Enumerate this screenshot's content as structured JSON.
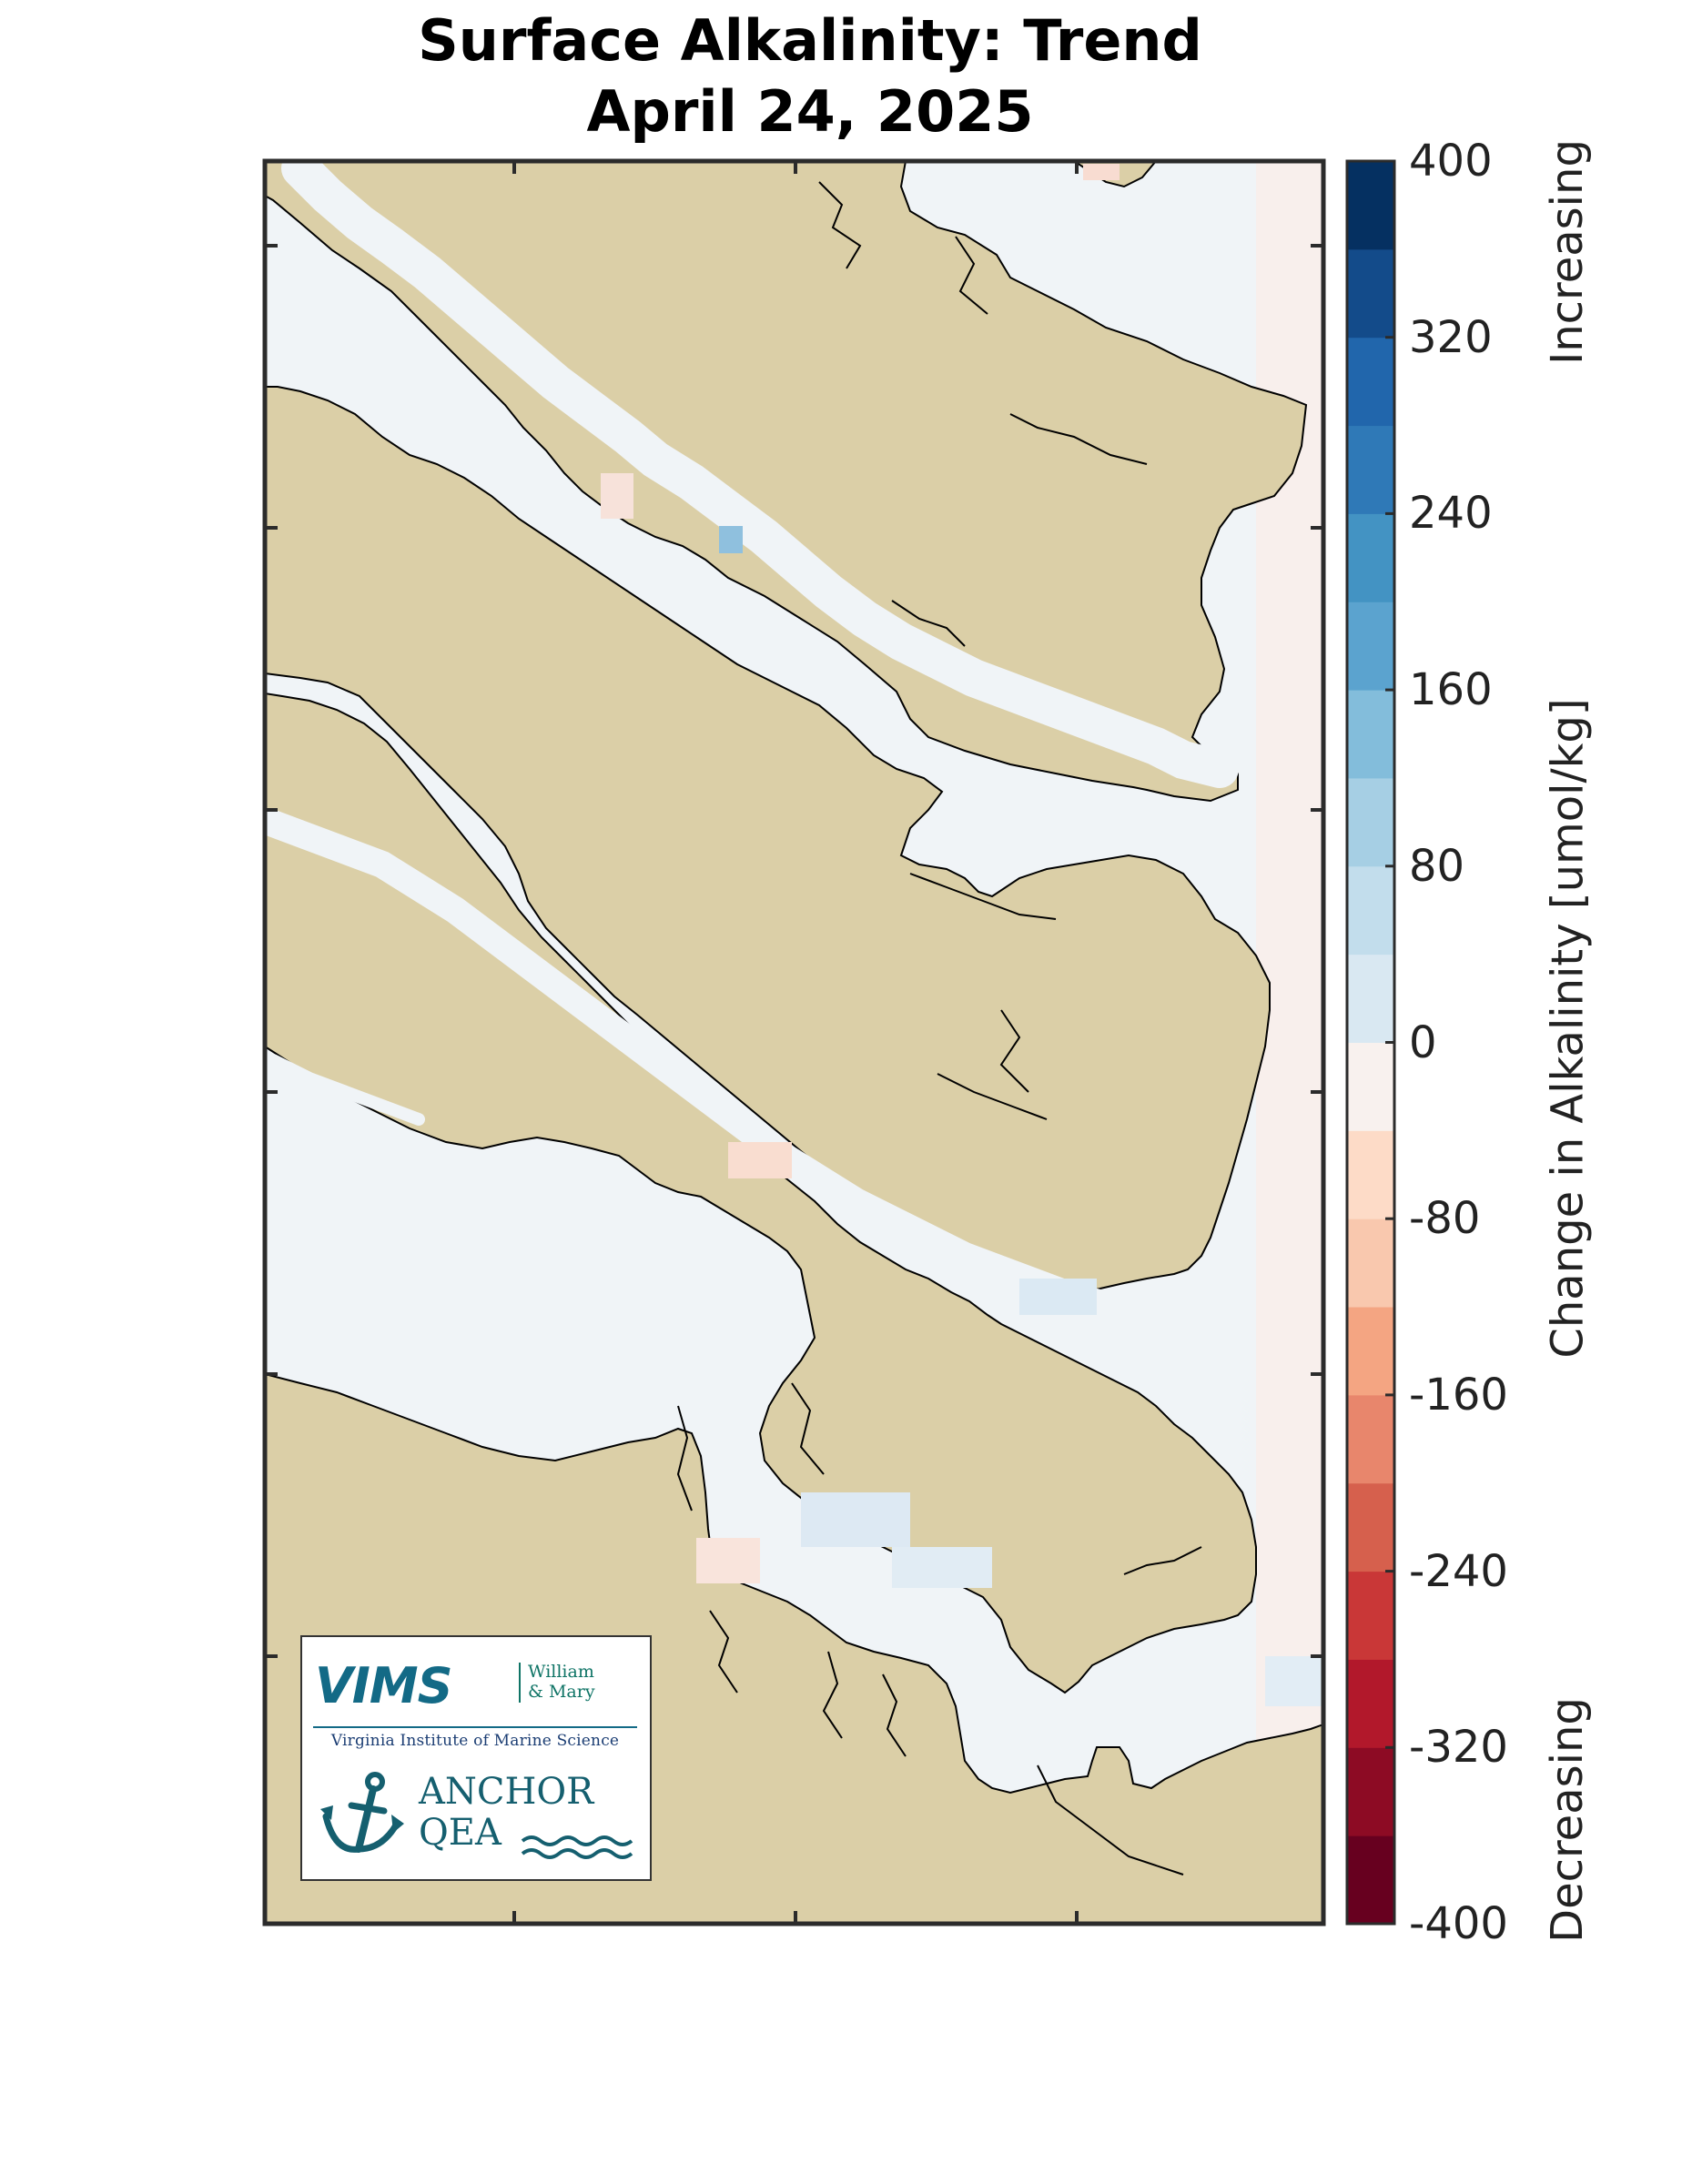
{
  "title": {
    "line1": "Surface Alkalinity: Trend",
    "line2": "April 24, 2025"
  },
  "colorbar": {
    "label": "Change in Alkalinity [umol/kg]",
    "top_label": "Increasing",
    "bottom_label": "Decreasing",
    "min": -400,
    "max": 400,
    "step": 40,
    "tick_labels": [
      "400",
      "320",
      "240",
      "160",
      "80",
      "0",
      "-80",
      "-160",
      "-240",
      "-320",
      "-400"
    ],
    "colors_bottom_to_top": [
      "#67001f",
      "#8d0b24",
      "#b2182b",
      "#c93737",
      "#d6604d",
      "#e8866c",
      "#f4a582",
      "#f9c8ae",
      "#fddbc7",
      "#f8f1ee",
      "#eef3f6",
      "#d9e8f2",
      "#c2ddec",
      "#a6cfe4",
      "#83bddb",
      "#5ba3cf",
      "#4393c3",
      "#2f79b7",
      "#2166ac",
      "#134b8a",
      "#053061"
    ]
  },
  "map": {
    "land_color": "#dbcfa7",
    "water_color": "#f0f4f7",
    "coast_color": "#000000",
    "frame_color": "#2b2b2b"
  },
  "logos": {
    "vims": "VIMS",
    "wm_line1": "William",
    "wm_line2": "& Mary",
    "vims_full": "Virginia Institute of Marine Science",
    "anchor_line1": "ANCHOR",
    "anchor_line2": "QEA"
  }
}
